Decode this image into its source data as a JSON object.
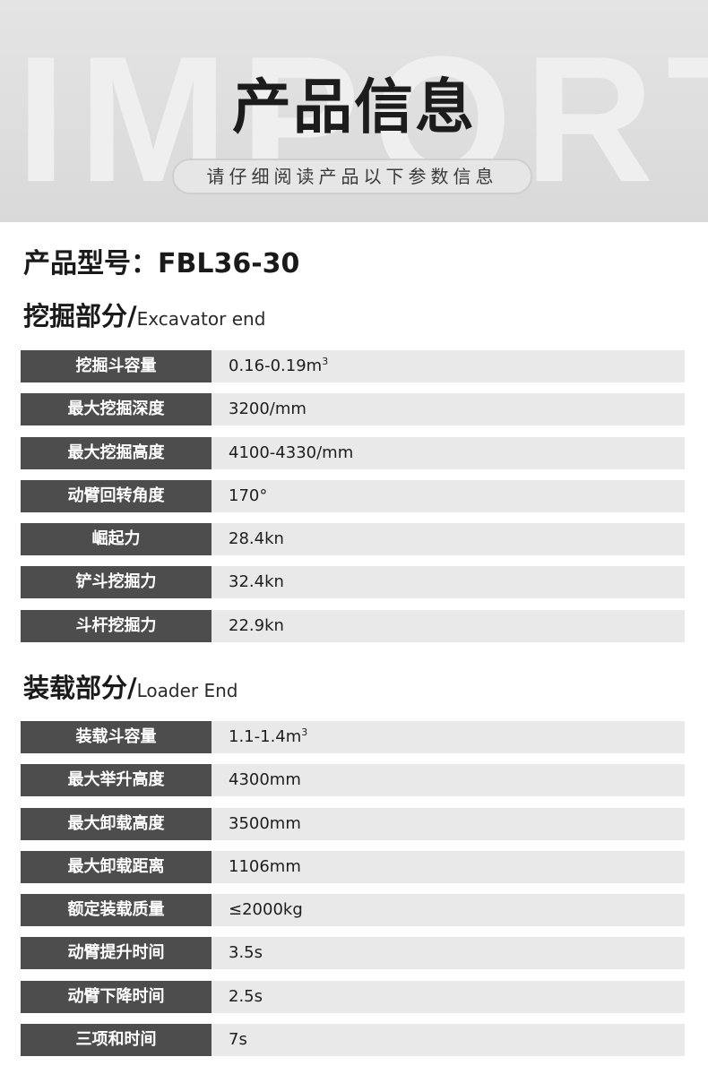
{
  "header": {
    "watermark": "IMPORT",
    "title": "产品信息",
    "subtitle": "请仔细阅读产品以下参数信息"
  },
  "model": {
    "label": "产品型号：",
    "value": "FBL36-30"
  },
  "excavator": {
    "title_cn": "挖掘部分/",
    "title_en": "Excavator end",
    "rows": [
      {
        "label": "挖掘斗容量",
        "value": "0.16-0.19m",
        "sup": "3"
      },
      {
        "label": "最大挖掘深度",
        "value": "3200/mm"
      },
      {
        "label": "最大挖掘高度",
        "value": "4100-4330/mm"
      },
      {
        "label": "动臂回转角度",
        "value": "170°"
      },
      {
        "label": "崛起力",
        "value": "28.4kn"
      },
      {
        "label": "铲斗挖掘力",
        "value": "32.4kn"
      },
      {
        "label": "斗杆挖掘力",
        "value": "22.9kn"
      }
    ]
  },
  "loader": {
    "title_cn": "装载部分/",
    "title_en": "Loader End",
    "rows": [
      {
        "label": "装载斗容量",
        "value": "1.1-1.4m",
        "sup": "3"
      },
      {
        "label": "最大举升高度",
        "value": "4300mm"
      },
      {
        "label": "最大卸载高度",
        "value": "3500mm"
      },
      {
        "label": "最大卸载距离",
        "value": "1106mm"
      },
      {
        "label": "额定装载质量",
        "value": "≤2000kg"
      },
      {
        "label": "动臂提升时间",
        "value": "3.5s"
      },
      {
        "label": "动臂下降时间",
        "value": "2.5s"
      },
      {
        "label": "三项和时间",
        "value": "7s"
      }
    ]
  },
  "colors": {
    "label_bg": "#4d4d4d",
    "row_bg": "#e9e9e9",
    "header_bg": "#dedede"
  }
}
